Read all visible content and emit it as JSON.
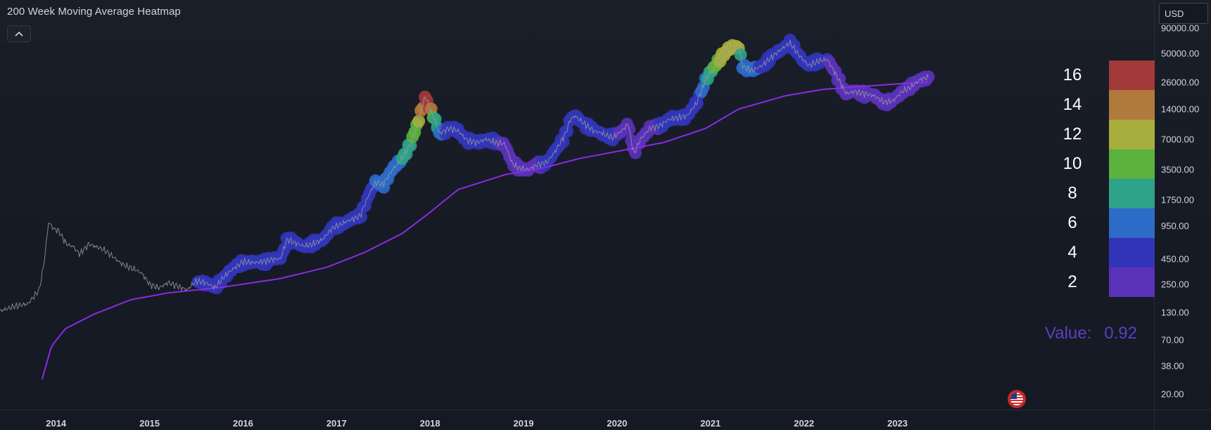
{
  "header": {
    "title": "200 Week Moving Average Heatmap",
    "collapse_icon": "chevron-up-icon",
    "currency": "USD"
  },
  "price_axis": {
    "labels": [
      "90000.00",
      "50000.00",
      "26000.00",
      "14000.00",
      "7000.00",
      "3500.00",
      "1750.00",
      "950.00",
      "450.00",
      "250.00",
      "130.00",
      "70.00",
      "38.00",
      "20.00"
    ]
  },
  "time_axis": {
    "labels": [
      "2014",
      "2015",
      "2016",
      "2017",
      "2018",
      "2019",
      "2020",
      "2021",
      "2022",
      "2023"
    ]
  },
  "legend": {
    "items": [
      {
        "label": "16",
        "color": "#a23a3a"
      },
      {
        "label": "14",
        "color": "#b07a3c"
      },
      {
        "label": "12",
        "color": "#a8ae3e"
      },
      {
        "label": "10",
        "color": "#5cb23e"
      },
      {
        "label": "8",
        "color": "#2ea38a"
      },
      {
        "label": "6",
        "color": "#2c6cc8"
      },
      {
        "label": "4",
        "color": "#3235b8"
      },
      {
        "label": "2",
        "color": "#5a32b8"
      }
    ],
    "value_label": "Value:",
    "value": "0.92"
  },
  "colors": {
    "ma_line": "#8a2be2",
    "price_line": "#9598a1",
    "background": "#151923"
  },
  "chart_data": {
    "type": "line",
    "title": "200 Week Moving Average Heatmap",
    "scale": "log",
    "ylim": [
      13,
      130000
    ],
    "xlim": [
      2013.4,
      2023.9
    ],
    "series": [
      {
        "points": [
          [
            2013.4,
            135
          ],
          [
            2013.55,
            150
          ],
          [
            2013.7,
            160
          ],
          [
            2013.82,
            220
          ],
          [
            2013.87,
            400
          ],
          [
            2013.92,
            1050
          ],
          [
            2013.97,
            900
          ],
          [
            2014.03,
            850
          ],
          [
            2014.08,
            700
          ],
          [
            2014.12,
            620
          ],
          [
            2014.18,
            600
          ],
          [
            2014.25,
            500
          ],
          [
            2014.35,
            630
          ],
          [
            2014.43,
            590
          ],
          [
            2014.5,
            560
          ],
          [
            2014.6,
            480
          ],
          [
            2014.7,
            400
          ],
          [
            2014.78,
            370
          ],
          [
            2014.85,
            350
          ],
          [
            2014.92,
            320
          ],
          [
            2015.0,
            250
          ],
          [
            2015.1,
            230
          ],
          [
            2015.2,
            260
          ],
          [
            2015.3,
            240
          ],
          [
            2015.4,
            220
          ],
          [
            2015.5,
            270
          ],
          [
            2015.6,
            260
          ],
          [
            2015.7,
            230
          ],
          [
            2015.8,
            300
          ],
          [
            2015.9,
            360
          ],
          [
            2016.0,
            420
          ],
          [
            2016.1,
            410
          ],
          [
            2016.2,
            420
          ],
          [
            2016.3,
            440
          ],
          [
            2016.4,
            450
          ],
          [
            2016.47,
            700
          ],
          [
            2016.55,
            650
          ],
          [
            2016.65,
            600
          ],
          [
            2016.75,
            630
          ],
          [
            2016.85,
            700
          ],
          [
            2016.95,
            900
          ],
          [
            2017.05,
            1000
          ],
          [
            2017.15,
            1100
          ],
          [
            2017.25,
            1200
          ],
          [
            2017.35,
            2000
          ],
          [
            2017.42,
            2600
          ],
          [
            2017.5,
            2500
          ],
          [
            2017.6,
            3500
          ],
          [
            2017.7,
            4500
          ],
          [
            2017.8,
            6500
          ],
          [
            2017.88,
            11000
          ],
          [
            2017.95,
            19000
          ],
          [
            2018.0,
            14000
          ],
          [
            2018.05,
            11000
          ],
          [
            2018.1,
            8000
          ],
          [
            2018.2,
            9000
          ],
          [
            2018.3,
            8500
          ],
          [
            2018.4,
            6800
          ],
          [
            2018.5,
            6500
          ],
          [
            2018.6,
            7000
          ],
          [
            2018.7,
            6500
          ],
          [
            2018.8,
            6300
          ],
          [
            2018.88,
            4000
          ],
          [
            2018.95,
            3600
          ],
          [
            2019.05,
            3500
          ],
          [
            2019.15,
            3900
          ],
          [
            2019.25,
            4100
          ],
          [
            2019.35,
            5500
          ],
          [
            2019.45,
            8000
          ],
          [
            2019.5,
            11000
          ],
          [
            2019.55,
            12000
          ],
          [
            2019.65,
            10000
          ],
          [
            2019.75,
            8500
          ],
          [
            2019.85,
            8000
          ],
          [
            2019.95,
            7200
          ],
          [
            2020.05,
            8500
          ],
          [
            2020.12,
            10000
          ],
          [
            2020.18,
            5000
          ],
          [
            2020.25,
            7000
          ],
          [
            2020.35,
            9000
          ],
          [
            2020.45,
            9500
          ],
          [
            2020.55,
            11000
          ],
          [
            2020.65,
            11500
          ],
          [
            2020.75,
            12000
          ],
          [
            2020.85,
            16000
          ],
          [
            2020.95,
            28000
          ],
          [
            2021.03,
            35000
          ],
          [
            2021.12,
            48000
          ],
          [
            2021.2,
            57000
          ],
          [
            2021.3,
            58000
          ],
          [
            2021.35,
            37000
          ],
          [
            2021.45,
            34000
          ],
          [
            2021.55,
            38000
          ],
          [
            2021.65,
            46000
          ],
          [
            2021.75,
            55000
          ],
          [
            2021.85,
            64000
          ],
          [
            2021.95,
            48000
          ],
          [
            2022.05,
            38000
          ],
          [
            2022.15,
            42000
          ],
          [
            2022.25,
            44000
          ],
          [
            2022.35,
            30000
          ],
          [
            2022.45,
            20000
          ],
          [
            2022.55,
            21000
          ],
          [
            2022.65,
            20000
          ],
          [
            2022.75,
            19000
          ],
          [
            2022.85,
            16500
          ],
          [
            2022.95,
            16800
          ],
          [
            2023.05,
            21000
          ],
          [
            2023.15,
            23500
          ],
          [
            2023.25,
            28000
          ],
          [
            2023.33,
            29000
          ]
        ]
      },
      {
        "points": [
          [
            2013.85,
            28
          ],
          [
            2013.95,
            60
          ],
          [
            2014.1,
            90
          ],
          [
            2014.4,
            125
          ],
          [
            2014.8,
            175
          ],
          [
            2015.2,
            205
          ],
          [
            2015.8,
            235
          ],
          [
            2016.4,
            285
          ],
          [
            2016.9,
            370
          ],
          [
            2017.3,
            520
          ],
          [
            2017.7,
            800
          ],
          [
            2017.95,
            1200
          ],
          [
            2018.3,
            2200
          ],
          [
            2018.8,
            3100
          ],
          [
            2019.2,
            3600
          ],
          [
            2019.6,
            4500
          ],
          [
            2020.0,
            5300
          ],
          [
            2020.5,
            6500
          ],
          [
            2020.95,
            9000
          ],
          [
            2021.3,
            14000
          ],
          [
            2021.8,
            19000
          ],
          [
            2022.2,
            22000
          ],
          [
            2022.6,
            23500
          ],
          [
            2023.0,
            25000
          ],
          [
            2023.33,
            26000
          ]
        ]
      }
    ],
    "heat_start": 2015.5,
    "heat_values": [
      [
        2015.5,
        3
      ],
      [
        2016.5,
        3.5
      ],
      [
        2017.0,
        4
      ],
      [
        2017.4,
        5
      ],
      [
        2017.6,
        6
      ],
      [
        2017.75,
        7.5
      ],
      [
        2017.85,
        10
      ],
      [
        2017.9,
        13
      ],
      [
        2017.95,
        16
      ],
      [
        2018.0,
        15
      ],
      [
        2018.05,
        9
      ],
      [
        2018.15,
        5
      ],
      [
        2018.4,
        4
      ],
      [
        2018.9,
        2.5
      ],
      [
        2019.2,
        3
      ],
      [
        2019.5,
        4
      ],
      [
        2020.0,
        3
      ],
      [
        2020.2,
        2.2
      ],
      [
        2020.6,
        3.5
      ],
      [
        2020.9,
        5
      ],
      [
        2021.0,
        8
      ],
      [
        2021.05,
        10
      ],
      [
        2021.12,
        12
      ],
      [
        2021.2,
        13
      ],
      [
        2021.3,
        11
      ],
      [
        2021.35,
        6
      ],
      [
        2021.5,
        5
      ],
      [
        2021.8,
        4.5
      ],
      [
        2022.1,
        3.5
      ],
      [
        2022.4,
        2.5
      ],
      [
        2022.6,
        2
      ],
      [
        2023.0,
        1.5
      ],
      [
        2023.33,
        1.8
      ]
    ],
    "color_scale": [
      [
        2,
        "#5a32b8"
      ],
      [
        4,
        "#3235b8"
      ],
      [
        6,
        "#2c6cc8"
      ],
      [
        8,
        "#2ea38a"
      ],
      [
        10,
        "#5cb23e"
      ],
      [
        12,
        "#a8ae3e"
      ],
      [
        14,
        "#b07a3c"
      ],
      [
        16,
        "#a23a3a"
      ]
    ]
  }
}
